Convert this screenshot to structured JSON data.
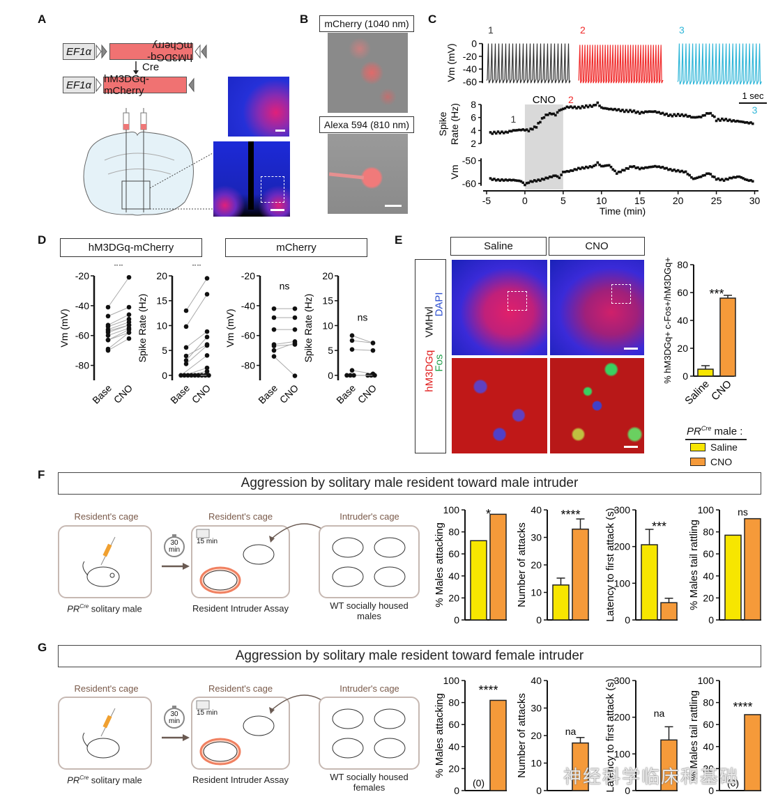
{
  "panels": {
    "A": {
      "label": "A",
      "construct_top": {
        "promoter": "EF1α",
        "gene": "hM3DGq-mCherry",
        "inverted": true
      },
      "recombinase": "Cre",
      "construct_bottom": {
        "promoter": "EF1α",
        "gene": "hM3DGq-mCherry"
      }
    },
    "B": {
      "label": "B",
      "image_top_label": "mCherry (1040 nm)",
      "image_bottom_label": "Alexa 594 (810 nm)"
    },
    "C": {
      "label": "C"
    },
    "D": {
      "label": "D",
      "group1_title": "hM3DGq-mCherry",
      "group2_title": "mCherry"
    },
    "E": {
      "label": "E",
      "col_titles": [
        "Saline",
        "CNO"
      ],
      "row_label_region": "VMHvl",
      "row_label_stains": [
        {
          "text": "DAPI",
          "color": "#2d4fd0"
        },
        {
          "text": "Fos",
          "color": "#1fa04a"
        },
        {
          "text": "hM3DGq",
          "color": "#e01b1b"
        }
      ],
      "legend_title": "PR",
      "legend_title_sup": "Cre",
      "legend_title_suffix": " male :",
      "legend": [
        {
          "label": "Saline",
          "color": "#f7e600"
        },
        {
          "label": "CNO",
          "color": "#f59a3a"
        }
      ]
    },
    "F": {
      "label": "F",
      "title": "Aggression by solitary male resident toward male intruder",
      "cage1_label": "Resident's cage",
      "cage2_label": "Resident's cage",
      "cage3_label": "Intruder's cage",
      "timer": "30 min",
      "timer_top": "30",
      "timer_bottom": "min",
      "camera": "15 min",
      "caption1_prefix": "PR",
      "caption1_sup": "Cre",
      "caption1_suffix": " solitary male",
      "caption2": "Resident Intruder Assay",
      "caption3": "WT socially housed males"
    },
    "G": {
      "label": "G",
      "title": "Aggression by solitary male resident toward female intruder",
      "cage1_label": "Resident's cage",
      "cage2_label": "Resident's cage",
      "cage3_label": "Intruder's cage",
      "timer_top": "30",
      "timer_bottom": "min",
      "camera": "15 min",
      "caption1_prefix": "PR",
      "caption1_sup": "Cre",
      "caption1_suffix": " solitary male",
      "caption2": "Resident Intruder Assay",
      "caption3": "WT socially housed females"
    }
  },
  "watermark": "神经科学临床和基础",
  "colors": {
    "saline": "#f7e600",
    "cno": "#f59a3a",
    "trace1": "#333333",
    "trace2": "#f02828",
    "trace3": "#2fb6d8",
    "cno_shade": "#d9d9d9"
  },
  "chart_data": [
    {
      "id": "C-traces",
      "type": "line",
      "title": "",
      "ylabel": "Vm (mV)",
      "yticks": [
        0,
        -20,
        -40,
        -60
      ],
      "ylim": [
        -65,
        5
      ],
      "scalebar": "1 sec",
      "series": [
        {
          "name": "1",
          "color": "#333333",
          "spikes": 24,
          "baseline": -58
        },
        {
          "name": "2",
          "color": "#f02828",
          "spikes": 33,
          "baseline": -58
        },
        {
          "name": "3",
          "color": "#2fb6d8",
          "spikes": 25,
          "baseline": -60
        }
      ]
    },
    {
      "id": "C-timecourse",
      "type": "scatter",
      "xlabel": "Time (min)",
      "xlim": [
        -5,
        30.5
      ],
      "xticks": [
        -5,
        0,
        5,
        10,
        15,
        20,
        25,
        30
      ],
      "shade": {
        "label": "CNO",
        "from": 0,
        "to": 5
      },
      "markers": [
        {
          "text": "1",
          "x": -1.5,
          "color": "#333333"
        },
        {
          "text": "2",
          "x": 6,
          "color": "#f02828"
        },
        {
          "text": "3",
          "x": 30,
          "color": "#2fb6d8"
        }
      ],
      "series": [
        {
          "name": "Spike Rate (Hz)",
          "ylim": [
            2,
            8
          ],
          "yticks": [
            2,
            4,
            6,
            8
          ],
          "points": [
            [
              -4.5,
              3.6
            ],
            [
              -3.5,
              3.7
            ],
            [
              -2.5,
              3.7
            ],
            [
              -1.5,
              4.0
            ],
            [
              -0.5,
              4.1
            ],
            [
              0,
              4.1
            ],
            [
              0.5,
              4.0
            ],
            [
              1,
              4.3
            ],
            [
              1.5,
              4.6
            ],
            [
              2,
              5.4
            ],
            [
              2.5,
              6.1
            ],
            [
              3,
              6.5
            ],
            [
              3.5,
              6.6
            ],
            [
              4,
              6.4
            ],
            [
              4.5,
              7.1
            ],
            [
              5,
              7.3
            ],
            [
              5.5,
              7.6
            ],
            [
              6,
              7.6
            ],
            [
              7,
              7.5
            ],
            [
              8,
              7.7
            ],
            [
              9,
              7.8
            ],
            [
              9.5,
              8.2
            ],
            [
              10,
              7.5
            ],
            [
              11,
              7.3
            ],
            [
              12,
              7.2
            ],
            [
              13,
              7.0
            ],
            [
              14,
              7.0
            ],
            [
              15,
              6.7
            ],
            [
              16,
              6.9
            ],
            [
              17,
              6.9
            ],
            [
              18,
              6.6
            ],
            [
              19,
              6.3
            ],
            [
              20,
              6.4
            ],
            [
              21,
              6.3
            ],
            [
              22,
              6.0
            ],
            [
              23,
              6.1
            ],
            [
              24,
              6.7
            ],
            [
              24.5,
              6.4
            ],
            [
              25,
              5.6
            ],
            [
              26,
              5.7
            ],
            [
              27,
              5.5
            ],
            [
              28,
              5.4
            ],
            [
              29,
              5.2
            ],
            [
              30,
              5.1
            ]
          ]
        },
        {
          "name": "Vm",
          "ylim": [
            -62,
            -48
          ],
          "yticks": [
            -50,
            -60
          ],
          "points": [
            [
              -4.5,
              -58
            ],
            [
              -3.5,
              -58.5
            ],
            [
              -2.5,
              -58.5
            ],
            [
              -1.5,
              -58.5
            ],
            [
              -0.5,
              -59
            ],
            [
              0,
              -60.5
            ],
            [
              0.5,
              -59.5
            ],
            [
              1,
              -59
            ],
            [
              2,
              -58.5
            ],
            [
              3,
              -57.5
            ],
            [
              4,
              -56.5
            ],
            [
              4.5,
              -57.5
            ],
            [
              5,
              -55
            ],
            [
              6,
              -54.5
            ],
            [
              7,
              -53.5
            ],
            [
              8,
              -53
            ],
            [
              9,
              -52.5
            ],
            [
              9.5,
              -51
            ],
            [
              10,
              -52.5
            ],
            [
              11,
              -52
            ],
            [
              12,
              -55.5
            ],
            [
              13,
              -54
            ],
            [
              14,
              -52.5
            ],
            [
              15,
              -53.5
            ],
            [
              16,
              -53
            ],
            [
              17,
              -52.5
            ],
            [
              18,
              -53
            ],
            [
              19,
              -54
            ],
            [
              20,
              -54.5
            ],
            [
              21,
              -55
            ],
            [
              22,
              -58
            ],
            [
              23,
              -57
            ],
            [
              24,
              -55.5
            ],
            [
              25,
              -58
            ],
            [
              26,
              -58.5
            ],
            [
              27,
              -57.5
            ],
            [
              28,
              -57
            ],
            [
              29,
              -58.5
            ],
            [
              30,
              -59
            ]
          ]
        }
      ]
    },
    {
      "id": "D-hm3-vm",
      "type": "scatter",
      "ylabel": "Vm (mV)",
      "ylim": [
        -90,
        -20
      ],
      "yticks": [
        -20,
        -40,
        -60,
        -80
      ],
      "categories": [
        "Base",
        "CNO"
      ],
      "sig": "**",
      "pairs": [
        [
          -41,
          -21
        ],
        [
          -47,
          -41
        ],
        [
          -53,
          -46
        ],
        [
          -54,
          -49
        ],
        [
          -56,
          -51
        ],
        [
          -57,
          -53
        ],
        [
          -58,
          -53
        ],
        [
          -60,
          -55
        ],
        [
          -63,
          -56
        ],
        [
          -63,
          -58
        ],
        [
          -69,
          -58
        ],
        [
          -70,
          -62
        ]
      ]
    },
    {
      "id": "D-hm3-rate",
      "type": "scatter",
      "ylabel": "Spike Rate (Hz)",
      "ylim": [
        -1,
        20
      ],
      "yticks": [
        0,
        5,
        10,
        15,
        20
      ],
      "categories": [
        "Base",
        "CNO"
      ],
      "sig": "**",
      "pairs": [
        [
          13,
          19.5
        ],
        [
          9.8,
          16.3
        ],
        [
          5.6,
          8.8
        ],
        [
          3.9,
          6.2
        ],
        [
          3,
          7.7
        ],
        [
          2.3,
          6
        ],
        [
          0,
          4
        ],
        [
          0,
          1.5
        ],
        [
          0,
          0.8
        ],
        [
          0,
          0
        ],
        [
          0,
          0
        ],
        [
          0,
          0
        ]
      ]
    },
    {
      "id": "D-mch-vm",
      "type": "scatter",
      "ylabel": "Vm (mV)",
      "ylim": [
        -90,
        -20
      ],
      "yticks": [
        -20,
        -40,
        -60,
        -80
      ],
      "categories": [
        "Base",
        "CNO"
      ],
      "sig": "ns",
      "pairs": [
        [
          -42,
          -42
        ],
        [
          -48,
          -48
        ],
        [
          -56,
          -56
        ],
        [
          -66,
          -64
        ],
        [
          -67,
          -66
        ],
        [
          -70,
          -65
        ],
        [
          -74,
          -87
        ]
      ]
    },
    {
      "id": "D-mch-rate",
      "type": "scatter",
      "ylabel": "Spike Rate (Hz)",
      "ylim": [
        -1,
        20
      ],
      "yticks": [
        0,
        5,
        10,
        15,
        20
      ],
      "categories": [
        "Base",
        "CNO"
      ],
      "sig": "ns",
      "pairs": [
        [
          8,
          6.5
        ],
        [
          7,
          6.5
        ],
        [
          5.2,
          5
        ],
        [
          1,
          0.3
        ],
        [
          0,
          0
        ],
        [
          0,
          0
        ],
        [
          0,
          0
        ]
      ]
    },
    {
      "id": "E-bar",
      "type": "bar",
      "ylabel": "% hM3DGq+ c-Fos+/hM3DGq+",
      "ylim": [
        0,
        80
      ],
      "yticks": [
        0,
        20,
        40,
        60,
        80
      ],
      "categories": [
        "Saline",
        "CNO"
      ],
      "values": [
        5,
        56
      ],
      "errors": [
        2.5,
        2
      ],
      "sig": "***"
    },
    {
      "id": "F-attacking",
      "type": "bar",
      "ylabel": "% Males attacking",
      "ylim": [
        0,
        100
      ],
      "yticks": [
        0,
        20,
        40,
        60,
        80,
        100
      ],
      "categories": [
        "Saline",
        "CNO"
      ],
      "values": [
        72,
        96
      ],
      "errors": [
        null,
        null
      ],
      "sig": "*"
    },
    {
      "id": "F-attacks",
      "type": "bar",
      "ylabel": "Number of attacks",
      "ylim": [
        0,
        40
      ],
      "yticks": [
        0,
        10,
        20,
        30,
        40
      ],
      "categories": [
        "Saline",
        "CNO"
      ],
      "values": [
        12.7,
        33
      ],
      "errors": [
        2.5,
        3.7
      ],
      "sig": "****"
    },
    {
      "id": "F-latency",
      "type": "bar",
      "ylabel": "Latency to first attack (s)",
      "ylim": [
        0,
        300
      ],
      "yticks": [
        0,
        100,
        200,
        300
      ],
      "categories": [
        "Saline",
        "CNO"
      ],
      "values": [
        205,
        47
      ],
      "errors": [
        42,
        12
      ],
      "sig": "***"
    },
    {
      "id": "F-rattling",
      "type": "bar",
      "ylabel": "% Males tail rattling",
      "ylim": [
        0,
        100
      ],
      "yticks": [
        0,
        20,
        40,
        60,
        80,
        100
      ],
      "categories": [
        "Saline",
        "CNO"
      ],
      "values": [
        77,
        92
      ],
      "errors": [
        null,
        null
      ],
      "sig": "ns"
    },
    {
      "id": "G-attacking",
      "type": "bar",
      "ylabel": "% Males attacking",
      "ylim": [
        0,
        100
      ],
      "yticks": [
        0,
        20,
        40,
        60,
        80,
        100
      ],
      "categories": [
        "Saline",
        "CNO"
      ],
      "values": [
        0,
        82
      ],
      "errors": [
        null,
        null
      ],
      "sig": "****",
      "zero_label": "(0)"
    },
    {
      "id": "G-attacks",
      "type": "bar",
      "ylabel": "Number of attacks",
      "ylim": [
        0,
        40
      ],
      "yticks": [
        0,
        10,
        20,
        30,
        40
      ],
      "categories": [
        "Saline",
        "CNO"
      ],
      "values": [
        null,
        17.3
      ],
      "errors": [
        null,
        2
      ],
      "sig": "na"
    },
    {
      "id": "G-latency",
      "type": "bar",
      "ylabel": "Latency to first attack (s)",
      "ylim": [
        0,
        300
      ],
      "yticks": [
        0,
        100,
        200,
        300
      ],
      "categories": [
        "Saline",
        "CNO"
      ],
      "values": [
        null,
        138
      ],
      "errors": [
        null,
        36
      ],
      "sig": "na"
    },
    {
      "id": "G-rattling",
      "type": "bar",
      "ylabel": "% Males tail rattling",
      "ylim": [
        0,
        100
      ],
      "yticks": [
        0,
        20,
        40,
        60,
        80,
        100
      ],
      "categories": [
        "Saline",
        "CNO"
      ],
      "values": [
        0,
        69
      ],
      "errors": [
        null,
        null
      ],
      "sig": "****",
      "zero_label": "(0)"
    }
  ]
}
